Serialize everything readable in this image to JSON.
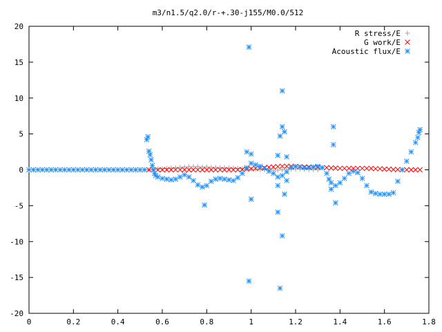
{
  "chart_data": {
    "type": "scatter",
    "title": "m3/n1.5/q2.0/r-+.30-j155/M0.0/512",
    "xlabel": "",
    "ylabel": "",
    "xlim": [
      0,
      1.8
    ],
    "ylim": [
      -20,
      20
    ],
    "x_ticks": [
      "0",
      "0.2",
      "0.4",
      "0.6",
      "0.8",
      "1",
      "1.2",
      "1.4",
      "1.6",
      "1.8"
    ],
    "y_ticks": [
      "20",
      "15",
      "10",
      "5",
      "0",
      "-5",
      "-10",
      "-15",
      "-20"
    ],
    "grid": false,
    "legend_position": "top-right",
    "series": [
      {
        "name": "R stress/E",
        "marker": "plus",
        "color": "#a0a0a0",
        "points": [
          [
            0.54,
            0.0
          ],
          [
            0.56,
            0.05
          ],
          [
            0.58,
            0.1
          ],
          [
            0.6,
            0.15
          ],
          [
            0.62,
            0.2
          ],
          [
            0.64,
            0.25
          ],
          [
            0.66,
            0.3
          ],
          [
            0.68,
            0.35
          ],
          [
            0.7,
            0.4
          ],
          [
            0.72,
            0.45
          ],
          [
            0.74,
            0.45
          ],
          [
            0.76,
            0.45
          ],
          [
            0.78,
            0.4
          ],
          [
            0.8,
            0.4
          ],
          [
            0.82,
            0.35
          ],
          [
            0.84,
            0.35
          ],
          [
            0.86,
            0.3
          ],
          [
            0.88,
            0.3
          ],
          [
            0.9,
            0.25
          ],
          [
            0.92,
            0.25
          ],
          [
            0.94,
            0.2
          ],
          [
            0.96,
            0.15
          ],
          [
            0.98,
            0.1
          ],
          [
            1.0,
            0.1
          ],
          [
            1.02,
            0.05
          ],
          [
            1.04,
            0.05
          ],
          [
            1.06,
            0.0
          ],
          [
            1.08,
            0.0
          ],
          [
            1.1,
            -0.05
          ],
          [
            1.12,
            -0.05
          ],
          [
            1.14,
            0.0
          ],
          [
            1.16,
            0.05
          ],
          [
            1.18,
            0.1
          ],
          [
            1.2,
            0.1
          ],
          [
            1.22,
            0.1
          ],
          [
            1.24,
            0.05
          ],
          [
            1.26,
            0.05
          ],
          [
            1.28,
            0.0
          ],
          [
            1.3,
            0.0
          ]
        ]
      },
      {
        "name": "G work/E",
        "marker": "cross",
        "color": "#ff0000",
        "points": [
          [
            0.54,
            0.0
          ],
          [
            0.56,
            0.0
          ],
          [
            0.58,
            0.0
          ],
          [
            0.6,
            0.0
          ],
          [
            0.62,
            0.0
          ],
          [
            0.64,
            0.0
          ],
          [
            0.66,
            0.0
          ],
          [
            0.68,
            0.0
          ],
          [
            0.7,
            0.0
          ],
          [
            0.72,
            0.0
          ],
          [
            0.74,
            0.0
          ],
          [
            0.76,
            0.0
          ],
          [
            0.78,
            0.0
          ],
          [
            0.8,
            0.0
          ],
          [
            0.82,
            0.0
          ],
          [
            0.84,
            0.0
          ],
          [
            0.86,
            0.0
          ],
          [
            0.88,
            0.0
          ],
          [
            0.9,
            0.0
          ],
          [
            0.92,
            0.0
          ],
          [
            0.94,
            0.0
          ],
          [
            0.96,
            0.05
          ],
          [
            0.98,
            0.1
          ],
          [
            1.0,
            0.15
          ],
          [
            1.02,
            0.2
          ],
          [
            1.04,
            0.25
          ],
          [
            1.06,
            0.3
          ],
          [
            1.08,
            0.35
          ],
          [
            1.1,
            0.4
          ],
          [
            1.12,
            0.45
          ],
          [
            1.14,
            0.5
          ],
          [
            1.16,
            0.5
          ],
          [
            1.18,
            0.5
          ],
          [
            1.2,
            0.45
          ],
          [
            1.22,
            0.45
          ],
          [
            1.24,
            0.4
          ],
          [
            1.26,
            0.4
          ],
          [
            1.28,
            0.35
          ],
          [
            1.3,
            0.35
          ],
          [
            1.32,
            0.3
          ],
          [
            1.34,
            0.3
          ],
          [
            1.36,
            0.25
          ],
          [
            1.38,
            0.25
          ],
          [
            1.4,
            0.2
          ],
          [
            1.42,
            0.2
          ],
          [
            1.44,
            0.2
          ],
          [
            1.46,
            0.2
          ],
          [
            1.48,
            0.2
          ],
          [
            1.5,
            0.2
          ],
          [
            1.52,
            0.2
          ],
          [
            1.54,
            0.2
          ],
          [
            1.56,
            0.15
          ],
          [
            1.58,
            0.15
          ],
          [
            1.6,
            0.1
          ],
          [
            1.62,
            0.1
          ],
          [
            1.64,
            0.05
          ],
          [
            1.66,
            0.05
          ],
          [
            1.68,
            0.0
          ],
          [
            1.7,
            0.0
          ],
          [
            1.72,
            0.0
          ],
          [
            1.74,
            0.0
          ],
          [
            1.76,
            0.0
          ]
        ]
      },
      {
        "name": "Acoustic flux/E",
        "marker": "star",
        "color": "#1e90ff",
        "points": [
          [
            0.0,
            0.0
          ],
          [
            0.02,
            0.0
          ],
          [
            0.04,
            0.0
          ],
          [
            0.06,
            0.0
          ],
          [
            0.08,
            0.0
          ],
          [
            0.1,
            0.0
          ],
          [
            0.12,
            0.0
          ],
          [
            0.14,
            0.0
          ],
          [
            0.16,
            0.0
          ],
          [
            0.18,
            0.0
          ],
          [
            0.2,
            0.0
          ],
          [
            0.22,
            0.0
          ],
          [
            0.24,
            0.0
          ],
          [
            0.26,
            0.0
          ],
          [
            0.28,
            0.0
          ],
          [
            0.3,
            0.0
          ],
          [
            0.32,
            0.0
          ],
          [
            0.34,
            0.0
          ],
          [
            0.36,
            0.0
          ],
          [
            0.38,
            0.0
          ],
          [
            0.4,
            0.0
          ],
          [
            0.42,
            0.0
          ],
          [
            0.44,
            0.0
          ],
          [
            0.46,
            0.0
          ],
          [
            0.48,
            0.0
          ],
          [
            0.5,
            0.0
          ],
          [
            0.52,
            0.0
          ],
          [
            0.53,
            4.2
          ],
          [
            0.535,
            4.6
          ],
          [
            0.54,
            2.6
          ],
          [
            0.545,
            2.1
          ],
          [
            0.55,
            1.4
          ],
          [
            0.555,
            0.6
          ],
          [
            0.56,
            0.0
          ],
          [
            0.565,
            -0.5
          ],
          [
            0.57,
            -0.8
          ],
          [
            0.58,
            -1.0
          ],
          [
            0.6,
            -1.2
          ],
          [
            0.62,
            -1.3
          ],
          [
            0.64,
            -1.4
          ],
          [
            0.66,
            -1.3
          ],
          [
            0.68,
            -1.0
          ],
          [
            0.7,
            -0.7
          ],
          [
            0.72,
            -1.0
          ],
          [
            0.74,
            -1.5
          ],
          [
            0.76,
            -2.1
          ],
          [
            0.78,
            -2.4
          ],
          [
            0.8,
            -2.2
          ],
          [
            0.82,
            -1.6
          ],
          [
            0.84,
            -1.3
          ],
          [
            0.86,
            -1.2
          ],
          [
            0.88,
            -1.3
          ],
          [
            0.9,
            -1.4
          ],
          [
            0.92,
            -1.5
          ],
          [
            0.94,
            -1.1
          ],
          [
            0.96,
            -0.5
          ],
          [
            0.98,
            0.3
          ],
          [
            1.0,
            0.9
          ],
          [
            1.02,
            0.7
          ],
          [
            1.04,
            0.5
          ],
          [
            1.06,
            0.2
          ],
          [
            1.08,
            -0.2
          ],
          [
            1.1,
            -0.5
          ],
          [
            1.12,
            -1.0
          ],
          [
            1.14,
            -0.8
          ],
          [
            1.16,
            -0.3
          ],
          [
            1.18,
            0.3
          ],
          [
            1.2,
            0.5
          ],
          [
            1.22,
            0.4
          ],
          [
            1.24,
            0.3
          ],
          [
            1.26,
            0.3
          ],
          [
            1.28,
            0.4
          ],
          [
            1.3,
            0.5
          ],
          [
            1.32,
            0.3
          ],
          [
            1.34,
            -0.5
          ],
          [
            1.36,
            -1.8
          ],
          [
            1.38,
            -2.2
          ],
          [
            1.4,
            -1.8
          ],
          [
            1.42,
            -1.2
          ],
          [
            1.44,
            -0.5
          ],
          [
            1.46,
            -0.2
          ],
          [
            1.48,
            -0.4
          ],
          [
            1.5,
            -1.2
          ],
          [
            1.52,
            -2.2
          ],
          [
            1.54,
            -3.1
          ],
          [
            1.56,
            -3.3
          ],
          [
            1.58,
            -3.4
          ],
          [
            1.6,
            -3.4
          ],
          [
            1.62,
            -3.4
          ],
          [
            1.64,
            -3.2
          ],
          [
            1.66,
            -1.6
          ],
          [
            1.68,
            0.0
          ],
          [
            1.7,
            1.2
          ],
          [
            1.72,
            2.5
          ],
          [
            1.74,
            3.8
          ],
          [
            1.75,
            4.5
          ],
          [
            1.755,
            5.2
          ],
          [
            1.76,
            5.6
          ],
          [
            0.79,
            -4.9
          ],
          [
            0.98,
            2.5
          ],
          [
            0.99,
            17.1
          ],
          [
            0.99,
            -15.5
          ],
          [
            1.0,
            -4.1
          ],
          [
            1.0,
            2.2
          ],
          [
            1.12,
            -2.2
          ],
          [
            1.12,
            -5.9
          ],
          [
            1.12,
            2.0
          ],
          [
            1.13,
            -16.5
          ],
          [
            1.13,
            4.7
          ],
          [
            1.14,
            6.0
          ],
          [
            1.14,
            11.0
          ],
          [
            1.14,
            -9.2
          ],
          [
            1.15,
            5.3
          ],
          [
            1.15,
            -3.4
          ],
          [
            1.16,
            1.8
          ],
          [
            1.16,
            -1.5
          ],
          [
            1.37,
            6.0
          ],
          [
            1.37,
            3.5
          ],
          [
            1.38,
            -4.6
          ],
          [
            1.35,
            -1.3
          ],
          [
            1.36,
            -2.7
          ]
        ]
      }
    ]
  }
}
